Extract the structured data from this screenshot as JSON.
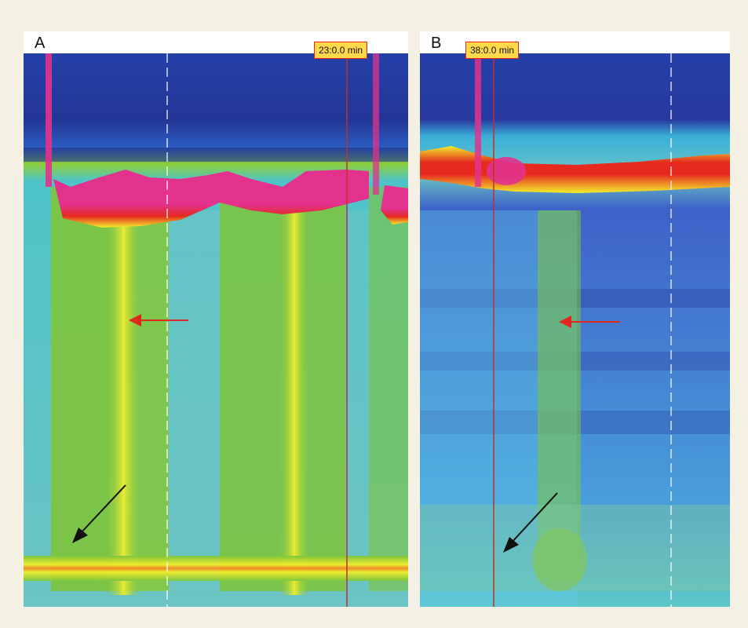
{
  "panels": [
    {
      "id": "A",
      "label": "A",
      "time_badge": "23:0.0 min"
    },
    {
      "id": "B",
      "label": "B",
      "time_badge": "38:0.0 min"
    }
  ],
  "colors": {
    "deep_blue": "#1e2a8c",
    "blue": "#3e62c8",
    "cyan": "#4ec4e8",
    "teal": "#6cc8c6",
    "green": "#7ec43a",
    "yellow": "#f2ee2a",
    "red": "#e62a20",
    "magenta": "#e2328e",
    "marker_line": "#c0302c",
    "arrow_red": "#e0281e",
    "arrow_black": "#111111"
  }
}
